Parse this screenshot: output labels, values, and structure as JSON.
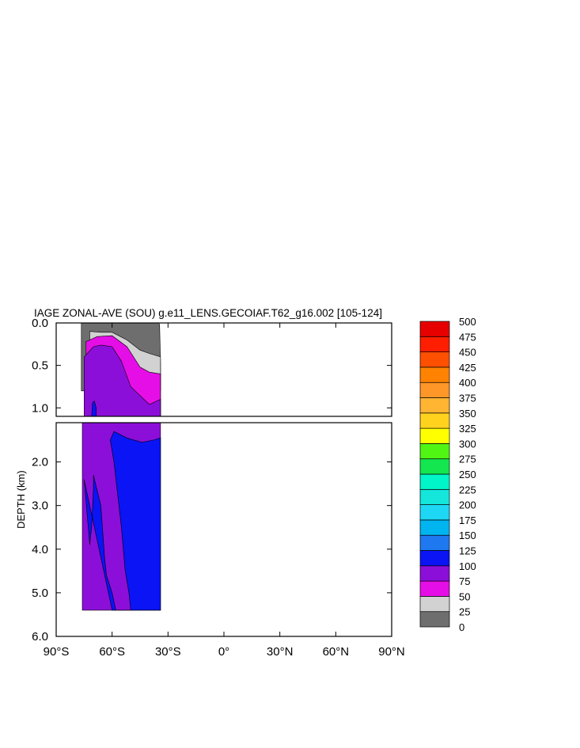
{
  "chart_data": {
    "type": "filled-contour",
    "title": "IAGE ZONAL-AVE (SOU) g.e11_LENS.GECOIAF.T62_g16.002 [105-124]",
    "ylabel": "DEPTH (km)",
    "x_ticks": [
      "90°S",
      "60°S",
      "30°S",
      "0°",
      "30°N",
      "60°N",
      "90°N"
    ],
    "x_tick_values": [
      -90,
      -60,
      -30,
      0,
      30,
      60,
      90
    ],
    "xlim": [
      -90,
      90
    ],
    "upper_panel": {
      "ylim": [
        0,
        1.1
      ],
      "y_ticks": [
        "0.0",
        "0.5",
        "1.0"
      ],
      "y_tick_values": [
        0,
        0.5,
        1.0
      ]
    },
    "lower_panel": {
      "ylim": [
        1.1,
        6.0
      ],
      "y_ticks": [
        "2.0",
        "3.0",
        "4.0",
        "5.0",
        "6.0"
      ],
      "y_tick_values": [
        2,
        3,
        4,
        5,
        6
      ]
    },
    "levels": [
      "0",
      "25",
      "50",
      "75",
      "100",
      "125",
      "150",
      "175",
      "200",
      "225",
      "250",
      "275",
      "300",
      "325",
      "350",
      "375",
      "400",
      "425",
      "450",
      "475",
      "500"
    ],
    "colors": [
      "#6e6e6e",
      "#d2d2d2",
      "#e60ee6",
      "#8c0fd9",
      "#0a14f5",
      "#1e78f0",
      "#00b4f0",
      "#1ed7f5",
      "#14e6dc",
      "#00f5c8",
      "#14e650",
      "#50f514",
      "#ffff00",
      "#ffd21e",
      "#ffb432",
      "#ff9628",
      "#ff8200",
      "#ff5000",
      "#ff1e00",
      "#e60000"
    ],
    "bands": [
      {
        "level": "0-25",
        "upper": [
          [
            -76.5,
            0
          ],
          [
            -57,
            0
          ],
          [
            -35,
            0
          ],
          [
            -34.5,
            0.02
          ],
          [
            -34,
            0.48
          ],
          [
            -34,
            0.8
          ],
          [
            -76.5,
            0.8
          ]
        ]
      },
      {
        "level": "25-50",
        "upper": [
          [
            -72,
            0.1
          ],
          [
            -66,
            0.11
          ],
          [
            -60,
            0.11
          ],
          [
            -52,
            0.2
          ],
          [
            -45,
            0.32
          ],
          [
            -40,
            0.36
          ],
          [
            -34,
            0.4
          ],
          [
            -34,
            1.1
          ],
          [
            -72,
            1.1
          ]
        ]
      },
      {
        "level": "50-75",
        "upper": [
          [
            -74,
            0.22
          ],
          [
            -68,
            0.16
          ],
          [
            -60,
            0.15
          ],
          [
            -52,
            0.28
          ],
          [
            -45,
            0.52
          ],
          [
            -40,
            0.58
          ],
          [
            -34,
            0.6
          ],
          [
            -34,
            1.1
          ],
          [
            -74,
            1.1
          ]
        ]
      },
      {
        "level": "75-100",
        "upper": [
          [
            -75,
            0.4
          ],
          [
            -70,
            0.28
          ],
          [
            -66,
            0.26
          ],
          [
            -60,
            0.28
          ],
          [
            -55,
            0.45
          ],
          [
            -50,
            0.75
          ],
          [
            -40,
            0.96
          ],
          [
            -34,
            0.9
          ],
          [
            -34,
            1.1
          ],
          [
            -75,
            1.1
          ]
        ],
        "lower": [
          [
            -76,
            1.1
          ],
          [
            -34,
            1.1
          ],
          [
            -34,
            5.4
          ],
          [
            -76,
            5.4
          ]
        ]
      },
      {
        "level": "100-125",
        "upper": [
          [
            -71,
            1.1
          ],
          [
            -70.5,
            0.94
          ],
          [
            -69.5,
            0.92
          ],
          [
            -68.5,
            1.0
          ],
          [
            -68.5,
            1.1
          ]
        ],
        "lower": [
          [
            -75,
            2.4
          ],
          [
            -74,
            2.9
          ],
          [
            -72,
            3.9
          ],
          [
            -71,
            3.5
          ],
          [
            -70,
            2.6
          ],
          [
            -70,
            2.3
          ],
          [
            -66,
            3.0
          ],
          [
            -64,
            4.2
          ],
          [
            -63,
            4.6
          ],
          [
            -60,
            5.0
          ],
          [
            -58,
            5.4
          ],
          [
            -50,
            5.4
          ],
          [
            -51,
            5.0
          ],
          [
            -53,
            4.5
          ],
          [
            -55,
            3.5
          ],
          [
            -59,
            2.0
          ],
          [
            -61,
            1.5
          ],
          [
            -59,
            1.3
          ],
          [
            -52,
            1.45
          ],
          [
            -44,
            1.55
          ],
          [
            -38,
            1.5
          ],
          [
            -34,
            1.45
          ],
          [
            -34,
            5.4
          ],
          [
            -60,
            5.4
          ]
        ]
      }
    ]
  }
}
